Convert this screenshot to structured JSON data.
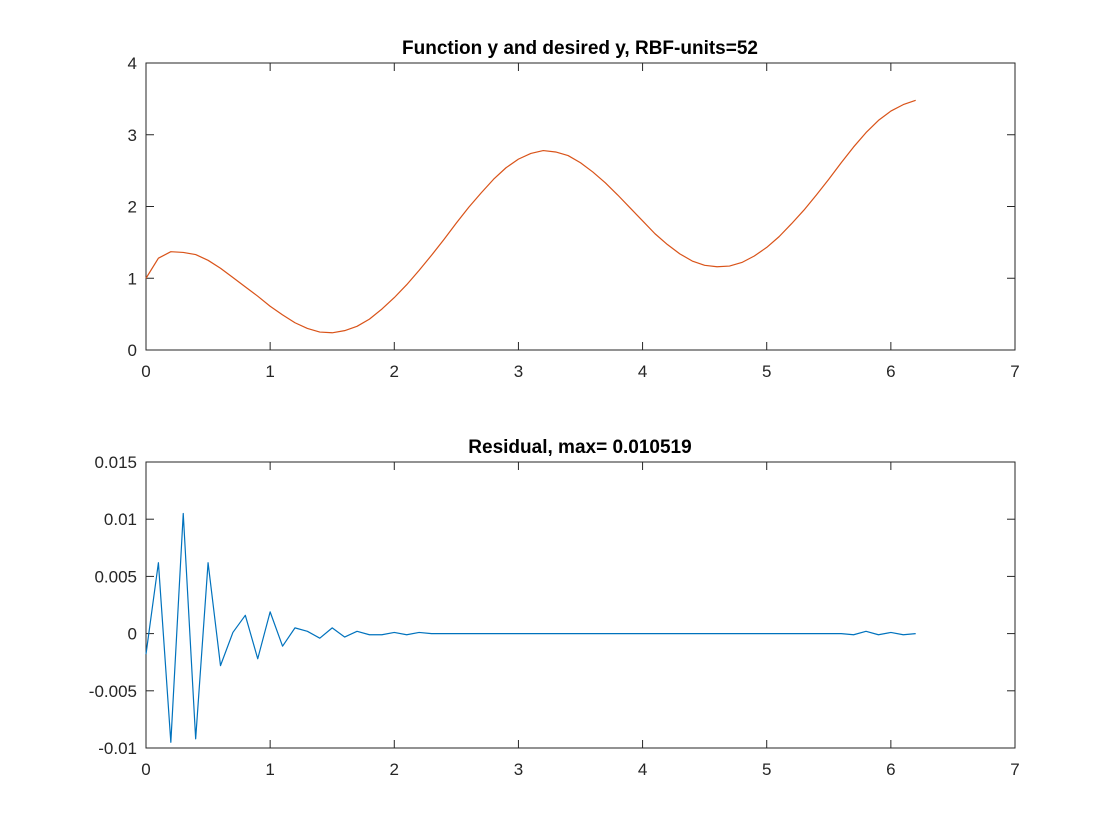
{
  "colors": {
    "fit_line": "#d95319",
    "residual_line": "#0072bd",
    "axes": "#262626"
  },
  "chart_data": [
    {
      "type": "line",
      "title": "Function y and desired y, RBF-units=52",
      "xlabel": "",
      "ylabel": "",
      "xlim": [
        0,
        7
      ],
      "ylim": [
        0,
        4
      ],
      "xticks": [
        0,
        1,
        2,
        3,
        4,
        5,
        6,
        7
      ],
      "yticks": [
        0,
        1,
        2,
        3,
        4
      ],
      "xtick_labels": [
        "0",
        "1",
        "2",
        "3",
        "4",
        "5",
        "6",
        "7"
      ],
      "ytick_labels": [
        "0",
        "1",
        "2",
        "3",
        "4"
      ],
      "grid": false,
      "series": [
        {
          "color": "#d95319",
          "x": [
            0,
            0.1,
            0.2,
            0.3,
            0.4,
            0.5,
            0.6,
            0.7,
            0.8,
            0.9,
            1.0,
            1.1,
            1.2,
            1.3,
            1.4,
            1.5,
            1.6,
            1.7,
            1.8,
            1.9,
            2.0,
            2.1,
            2.2,
            2.3,
            2.4,
            2.5,
            2.6,
            2.7,
            2.8,
            2.9,
            3.0,
            3.1,
            3.2,
            3.3,
            3.4,
            3.5,
            3.6,
            3.7,
            3.8,
            3.9,
            4.0,
            4.1,
            4.2,
            4.3,
            4.4,
            4.5,
            4.6,
            4.7,
            4.8,
            4.9,
            5.0,
            5.1,
            5.2,
            5.3,
            5.4,
            5.5,
            5.6,
            5.7,
            5.8,
            5.9,
            6.0,
            6.1,
            6.2
          ],
          "y": [
            1.0,
            1.28,
            1.37,
            1.36,
            1.33,
            1.25,
            1.14,
            1.01,
            0.88,
            0.75,
            0.61,
            0.49,
            0.38,
            0.3,
            0.25,
            0.24,
            0.27,
            0.33,
            0.43,
            0.57,
            0.73,
            0.91,
            1.11,
            1.32,
            1.54,
            1.77,
            1.99,
            2.19,
            2.38,
            2.54,
            2.66,
            2.74,
            2.78,
            2.76,
            2.71,
            2.61,
            2.48,
            2.33,
            2.16,
            1.98,
            1.8,
            1.62,
            1.47,
            1.34,
            1.24,
            1.18,
            1.16,
            1.17,
            1.22,
            1.31,
            1.43,
            1.58,
            1.76,
            1.95,
            2.16,
            2.38,
            2.61,
            2.83,
            3.03,
            3.2,
            3.33,
            3.42,
            3.48
          ]
        }
      ]
    },
    {
      "type": "line",
      "title": "Residual, max= 0.010519",
      "xlabel": "",
      "ylabel": "",
      "xlim": [
        0,
        7
      ],
      "ylim": [
        -0.01,
        0.015
      ],
      "xticks": [
        0,
        1,
        2,
        3,
        4,
        5,
        6,
        7
      ],
      "yticks": [
        -0.01,
        -0.005,
        0,
        0.005,
        0.01,
        0.015
      ],
      "xtick_labels": [
        "0",
        "1",
        "2",
        "3",
        "4",
        "5",
        "6",
        "7"
      ],
      "ytick_labels": [
        "-0.01",
        "-0.005",
        "0",
        "0.005",
        "0.01",
        "0.015"
      ],
      "grid": false,
      "series": [
        {
          "color": "#0072bd",
          "x": [
            0,
            0.1,
            0.2,
            0.3,
            0.4,
            0.5,
            0.6,
            0.7,
            0.8,
            0.9,
            1.0,
            1.1,
            1.2,
            1.3,
            1.4,
            1.5,
            1.6,
            1.7,
            1.8,
            1.9,
            2.0,
            2.1,
            2.2,
            2.3,
            2.4,
            2.5,
            2.6,
            2.7,
            2.8,
            2.9,
            3.0,
            3.1,
            3.2,
            3.3,
            3.4,
            3.5,
            3.6,
            3.7,
            3.8,
            3.9,
            4.0,
            4.1,
            4.2,
            4.3,
            4.4,
            4.5,
            4.6,
            4.7,
            4.8,
            4.9,
            5.0,
            5.1,
            5.2,
            5.3,
            5.4,
            5.5,
            5.6,
            5.7,
            5.8,
            5.9,
            6.0,
            6.1,
            6.2
          ],
          "y": [
            -0.0018,
            0.0062,
            -0.0095,
            0.0105,
            -0.0092,
            0.0062,
            -0.0028,
            0.0001,
            0.0016,
            -0.0022,
            0.0019,
            -0.0011,
            0.0005,
            0.0002,
            -0.0004,
            0.0005,
            -0.0003,
            0.0002,
            -0.0001,
            -0.0001,
            0.0001,
            -0.0001,
            0.0001,
            0.0,
            0.0,
            0.0,
            0.0,
            0.0,
            0.0,
            0.0,
            0.0,
            0.0,
            0.0,
            0.0,
            0.0,
            0.0,
            0.0,
            0.0,
            0.0,
            0.0,
            0.0,
            0.0,
            0.0,
            0.0,
            0.0,
            0.0,
            0.0,
            0.0,
            0.0,
            0.0,
            0.0,
            0.0,
            0.0,
            0.0,
            0.0,
            0.0,
            0.0,
            -0.0001,
            0.0002,
            -0.0001,
            0.0001,
            -0.0001,
            0.0
          ]
        }
      ]
    }
  ]
}
